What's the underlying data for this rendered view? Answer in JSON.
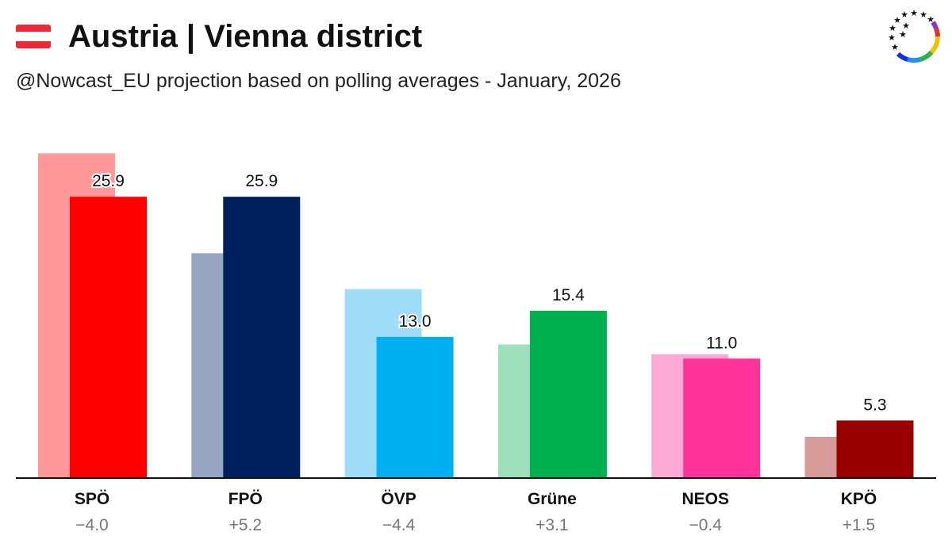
{
  "header": {
    "title": "Austria | Vienna district",
    "subtitle": "@Nowcast_EU projection based on polling averages - January, 2026"
  },
  "chart_data": {
    "type": "bar",
    "title": "Austria | Vienna district",
    "subtitle": "@Nowcast_EU projection based on polling averages - January, 2026",
    "categories": [
      "SPÖ",
      "FPÖ",
      "ÖVP",
      "Grüne",
      "NEOS",
      "KPÖ"
    ],
    "series": [
      {
        "values": [
          29.9,
          20.7,
          17.4,
          12.3,
          11.4,
          3.8
        ]
      },
      {
        "values": [
          25.9,
          25.9,
          13.0,
          15.4,
          11.0,
          5.3
        ]
      }
    ],
    "value_labels": [
      "25.9",
      "25.9",
      "13.0",
      "15.4",
      "11.0",
      "5.3"
    ],
    "changes": [
      "−4.0",
      "+5.2",
      "−4.4",
      "+3.1",
      "−0.4",
      "+1.5"
    ],
    "colors": {
      "current": [
        "#ff0000",
        "#00205b",
        "#00b0f0",
        "#00b050",
        "#ff3399",
        "#990000"
      ],
      "previous": [
        "#ff9999",
        "#97a6c0",
        "#9edcf7",
        "#9edfbc",
        "#ffaad5",
        "#d69b99"
      ]
    },
    "ylim": [
      0,
      32
    ],
    "grid": false,
    "legend": "none"
  }
}
